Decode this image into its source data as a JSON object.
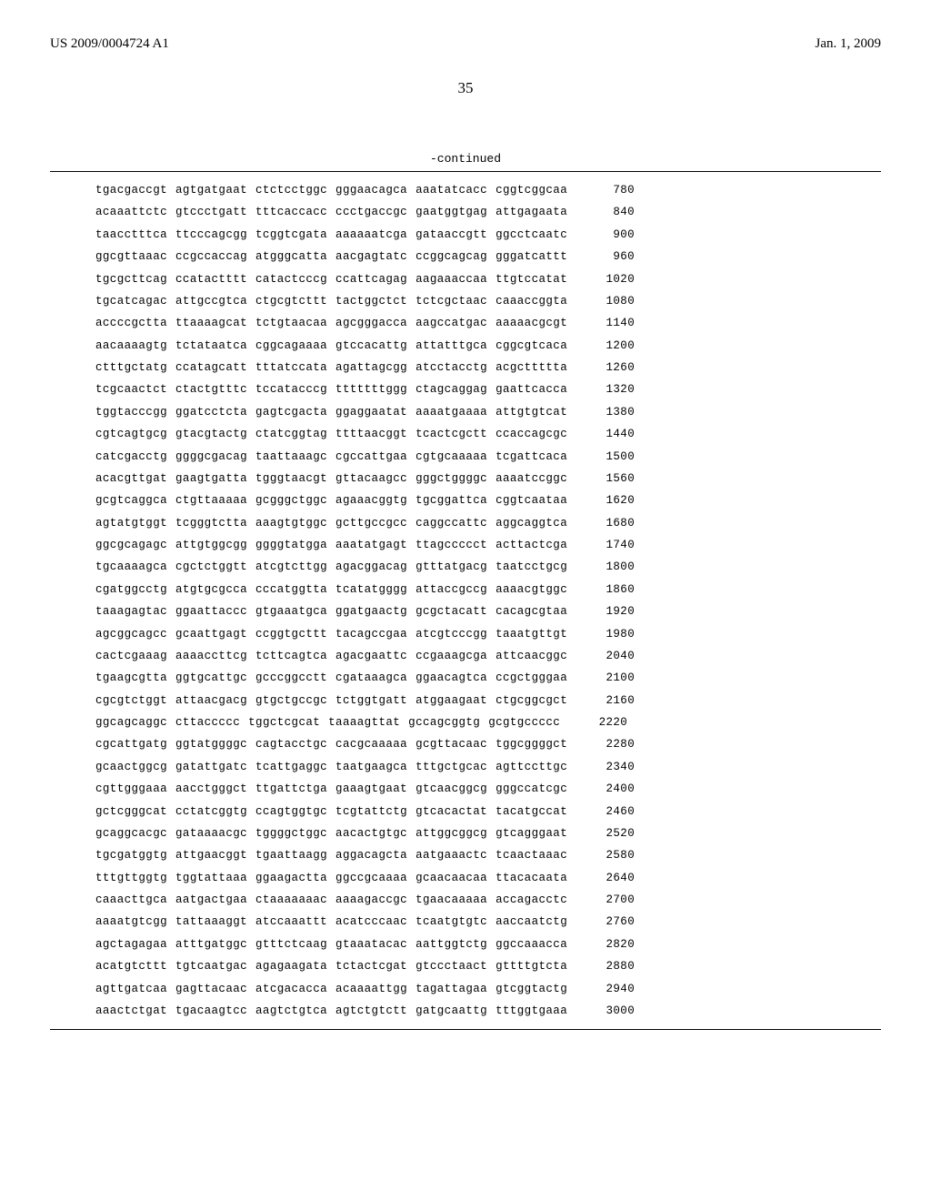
{
  "header": {
    "patent_number": "US 2009/0004724 A1",
    "date": "Jan. 1, 2009"
  },
  "page_number": "35",
  "continued_label": "-continued",
  "sequence_rows": [
    {
      "blocks": [
        "tgacgaccgt",
        "agtgatgaat",
        "ctctcctggc",
        "gggaacagca",
        "aaatatcacc",
        "cggtcggcaa"
      ],
      "pos": "780"
    },
    {
      "blocks": [
        "acaaattctc",
        "gtccctgatt",
        "tttcaccacc",
        "ccctgaccgc",
        "gaatggtgag",
        "attgagaata"
      ],
      "pos": "840"
    },
    {
      "blocks": [
        "taacctttca",
        "ttcccagcgg",
        "tcggtcgata",
        "aaaaaatcga",
        "gataaccgtt",
        "ggcctcaatc"
      ],
      "pos": "900"
    },
    {
      "blocks": [
        "ggcgttaaac",
        "ccgccaccag",
        "atgggcatta",
        "aacgagtatc",
        "ccggcagcag",
        "gggatcattt"
      ],
      "pos": "960"
    },
    {
      "blocks": [
        "tgcgcttcag",
        "ccatactttt",
        "catactcccg",
        "ccattcagag",
        "aagaaaccaa",
        "ttgtccatat"
      ],
      "pos": "1020"
    },
    {
      "blocks": [
        "tgcatcagac",
        "attgccgtca",
        "ctgcgtcttt",
        "tactggctct",
        "tctcgctaac",
        "caaaccggta"
      ],
      "pos": "1080"
    },
    {
      "blocks": [
        "accccgctta",
        "ttaaaagcat",
        "tctgtaacaa",
        "agcgggacca",
        "aagccatgac",
        "aaaaacgcgt"
      ],
      "pos": "1140"
    },
    {
      "blocks": [
        "aacaaaagtg",
        "tctataatca",
        "cggcagaaaa",
        "gtccacattg",
        "attatttgca",
        "cggcgtcaca"
      ],
      "pos": "1200"
    },
    {
      "blocks": [
        "ctttgctatg",
        "ccatagcatt",
        "tttatccata",
        "agattagcgg",
        "atcctacctg",
        "acgcttttta"
      ],
      "pos": "1260"
    },
    {
      "blocks": [
        "tcgcaactct",
        "ctactgtttc",
        "tccatacccg",
        "tttttttggg",
        "ctagcaggag",
        "gaattcacca"
      ],
      "pos": "1320"
    },
    {
      "blocks": [
        "tggtacccgg",
        "ggatcctcta",
        "gagtcgacta",
        "ggaggaatat",
        "aaaatgaaaa",
        "attgtgtcat"
      ],
      "pos": "1380"
    },
    {
      "blocks": [
        "cgtcagtgcg",
        "gtacgtactg",
        "ctatcggtag",
        "ttttaacggt",
        "tcactcgctt",
        "ccaccagcgc"
      ],
      "pos": "1440"
    },
    {
      "blocks": [
        "catcgacctg",
        "ggggcgacag",
        "taattaaagc",
        "cgccattgaa",
        "cgtgcaaaaa",
        "tcgattcaca"
      ],
      "pos": "1500"
    },
    {
      "blocks": [
        "acacgttgat",
        "gaagtgatta",
        "tgggtaacgt",
        "gttacaagcc",
        "gggctggggc",
        "aaaatccggc"
      ],
      "pos": "1560"
    },
    {
      "blocks": [
        "gcgtcaggca",
        "ctgttaaaaa",
        "gcgggctggc",
        "agaaacggtg",
        "tgcggattca",
        "cggtcaataa"
      ],
      "pos": "1620"
    },
    {
      "blocks": [
        "agtatgtggt",
        "tcgggtctta",
        "aaagtgtggc",
        "gcttgccgcc",
        "caggccattc",
        "aggcaggtca"
      ],
      "pos": "1680"
    },
    {
      "blocks": [
        "ggcgcagagc",
        "attgtggcgg",
        "ggggtatgga",
        "aaatatgagt",
        "ttagccccct",
        "acttactcga"
      ],
      "pos": "1740"
    },
    {
      "blocks": [
        "tgcaaaagca",
        "cgctctggtt",
        "atcgtcttgg",
        "agacggacag",
        "gtttatgacg",
        "taatcctgcg"
      ],
      "pos": "1800"
    },
    {
      "blocks": [
        "cgatggcctg",
        "atgtgcgcca",
        "cccatggtta",
        "tcatatgggg",
        "attaccgccg",
        "aaaacgtggc"
      ],
      "pos": "1860"
    },
    {
      "blocks": [
        "taaagagtac",
        "ggaattaccc",
        "gtgaaatgca",
        "ggatgaactg",
        "gcgctacatt",
        "cacagcgtaa"
      ],
      "pos": "1920"
    },
    {
      "blocks": [
        "agcggcagcc",
        "gcaattgagt",
        "ccggtgcttt",
        "tacagccgaa",
        "atcgtcccgg",
        "taaatgttgt"
      ],
      "pos": "1980"
    },
    {
      "blocks": [
        "cactcgaaag",
        "aaaaccttcg",
        "tcttcagtca",
        "agacgaattc",
        "ccgaaagcga",
        "attcaacggc"
      ],
      "pos": "2040"
    },
    {
      "blocks": [
        "tgaagcgtta",
        "ggtgcattgc",
        "gcccggcctt",
        "cgataaagca",
        "ggaacagtca",
        "ccgctgggaa"
      ],
      "pos": "2100"
    },
    {
      "blocks": [
        "cgcgtctggt",
        "attaacgacg",
        "gtgctgccgc",
        "tctggtgatt",
        "atggaagaat",
        "ctgcggcgct"
      ],
      "pos": "2160"
    },
    {
      "blocks": [
        "ggcagcaggc",
        "cttaccccc",
        "tggctcgcat",
        "taaaagttat",
        "gccagcggtg",
        "gcgtgccccc"
      ],
      "pos": "2220"
    },
    {
      "blocks": [
        "cgcattgatg",
        "ggtatggggc",
        "cagtacctgc",
        "cacgcaaaaa",
        "gcgttacaac",
        "tggcggggct"
      ],
      "pos": "2280"
    },
    {
      "blocks": [
        "gcaactggcg",
        "gatattgatc",
        "tcattgaggc",
        "taatgaagca",
        "tttgctgcac",
        "agttccttgc"
      ],
      "pos": "2340"
    },
    {
      "blocks": [
        "cgttgggaaa",
        "aacctgggct",
        "ttgattctga",
        "gaaagtgaat",
        "gtcaacggcg",
        "gggccatcgc"
      ],
      "pos": "2400"
    },
    {
      "blocks": [
        "gctcgggcat",
        "cctatcggtg",
        "ccagtggtgc",
        "tcgtattctg",
        "gtcacactat",
        "tacatgccat"
      ],
      "pos": "2460"
    },
    {
      "blocks": [
        "gcaggcacgc",
        "gataaaacgc",
        "tggggctggc",
        "aacactgtgc",
        "attggcggcg",
        "gtcagggaat"
      ],
      "pos": "2520"
    },
    {
      "blocks": [
        "tgcgatggtg",
        "attgaacggt",
        "tgaattaagg",
        "aggacagcta",
        "aatgaaactc",
        "tcaactaaac"
      ],
      "pos": "2580"
    },
    {
      "blocks": [
        "tttgttggtg",
        "tggtattaaa",
        "ggaagactta",
        "ggccgcaaaa",
        "gcaacaacaa",
        "ttacacaata"
      ],
      "pos": "2640"
    },
    {
      "blocks": [
        "caaacttgca",
        "aatgactgaa",
        "ctaaaaaaac",
        "aaaagaccgc",
        "tgaacaaaaa",
        "accagacctc"
      ],
      "pos": "2700"
    },
    {
      "blocks": [
        "aaaatgtcgg",
        "tattaaaggt",
        "atccaaattt",
        "acatcccaac",
        "tcaatgtgtc",
        "aaccaatctg"
      ],
      "pos": "2760"
    },
    {
      "blocks": [
        "agctagagaa",
        "atttgatggc",
        "gtttctcaag",
        "gtaaatacac",
        "aattggtctg",
        "ggccaaacca"
      ],
      "pos": "2820"
    },
    {
      "blocks": [
        "acatgtcttt",
        "tgtcaatgac",
        "agagaagata",
        "tctactcgat",
        "gtccctaact",
        "gttttgtcta"
      ],
      "pos": "2880"
    },
    {
      "blocks": [
        "agttgatcaa",
        "gagttacaac",
        "atcgacacca",
        "acaaaattgg",
        "tagattagaa",
        "gtcggtactg"
      ],
      "pos": "2940"
    },
    {
      "blocks": [
        "aaactctgat",
        "tgacaagtcc",
        "aagtctgtca",
        "agtctgtctt",
        "gatgcaattg",
        "tttggtgaaa"
      ],
      "pos": "3000"
    }
  ]
}
